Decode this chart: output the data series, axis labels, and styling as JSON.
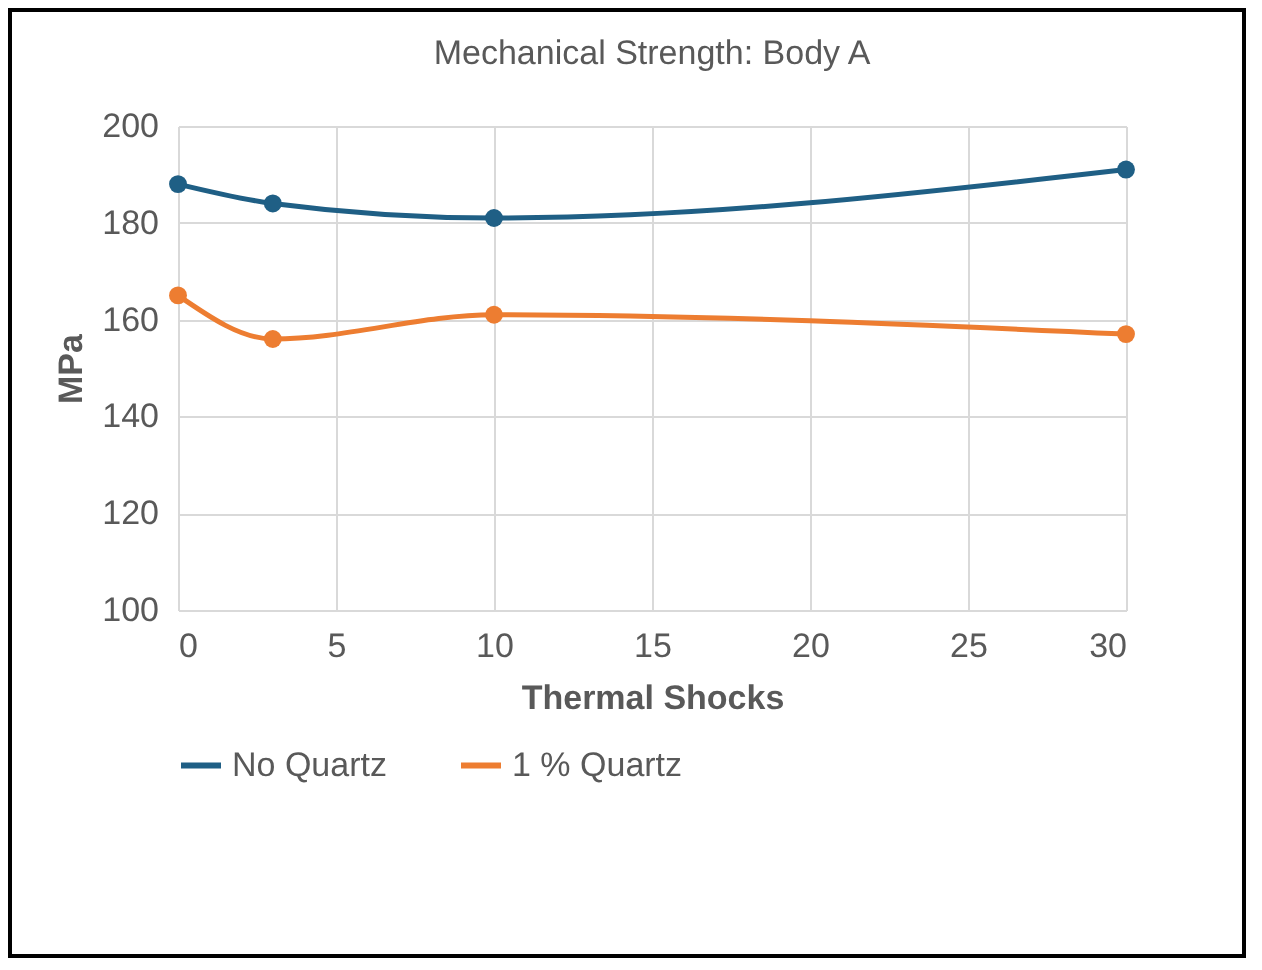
{
  "chart_data": {
    "type": "line",
    "title": "Mechanical Strength: Body A",
    "xlabel": "Thermal Shocks",
    "ylabel": "MPa",
    "x": [
      0,
      3,
      10,
      30
    ],
    "series": [
      {
        "name": "No Quartz",
        "color": "#1f5f85",
        "values": [
          188,
          184,
          181,
          191
        ]
      },
      {
        "name": "1 % Quartz",
        "color": "#ed7d31",
        "values": [
          165,
          156,
          161,
          157
        ]
      }
    ],
    "xlim": [
      0,
      30
    ],
    "xticks": [
      0,
      5,
      10,
      15,
      20,
      25,
      30
    ],
    "ylim": [
      100,
      200
    ],
    "yticks": [
      100,
      120,
      140,
      160,
      180,
      200
    ],
    "grid": true,
    "legend": "bottom",
    "marker": "circle",
    "line_style": "solid"
  }
}
